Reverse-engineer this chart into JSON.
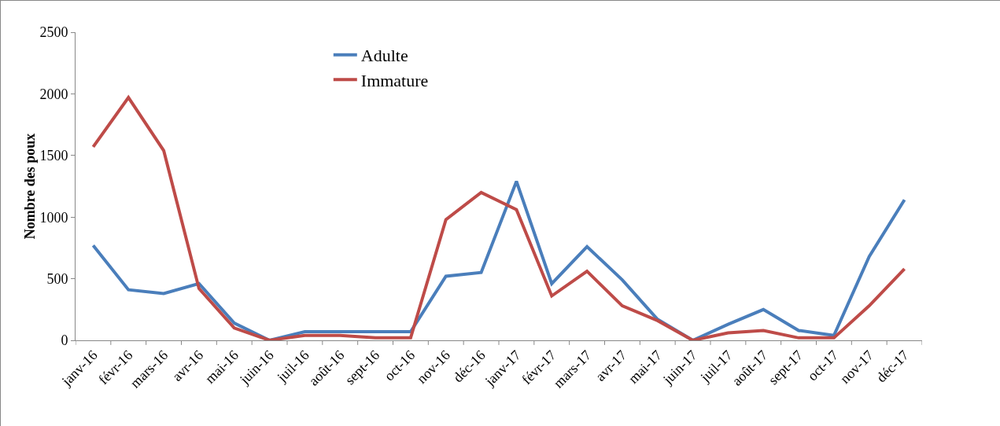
{
  "chart_data": {
    "type": "line",
    "ylabel": "Nombre des poux",
    "categories": [
      "janv-16",
      "févr-16",
      "mars-16",
      "avr-16",
      "mai-16",
      "juin-16",
      "juil-16",
      "août-16",
      "sept-16",
      "oct-16",
      "nov-16",
      "déc-16",
      "janv-17",
      "févr-17",
      "mars-17",
      "avr-17",
      "mai-17",
      "juin-17",
      "juil-17",
      "août-17",
      "sept-17",
      "oct-17",
      "nov-17",
      "déc-17"
    ],
    "series": [
      {
        "name": "Adulte",
        "color": "#4a7ebb",
        "values": [
          770,
          410,
          380,
          460,
          140,
          0,
          70,
          70,
          70,
          70,
          520,
          550,
          1290,
          460,
          760,
          490,
          170,
          0,
          130,
          250,
          80,
          40,
          680,
          1140
        ]
      },
      {
        "name": "Immature",
        "color": "#be4b48",
        "values": [
          1570,
          1970,
          1540,
          420,
          100,
          0,
          40,
          40,
          20,
          20,
          980,
          1200,
          1060,
          360,
          560,
          280,
          160,
          0,
          60,
          80,
          20,
          20,
          280,
          580
        ]
      }
    ],
    "ylim": [
      0,
      2500
    ],
    "yticks": [
      0,
      500,
      1000,
      1500,
      2000,
      2500
    ],
    "grid": false,
    "legend": "top",
    "marker": "none",
    "line_style": "solid"
  }
}
